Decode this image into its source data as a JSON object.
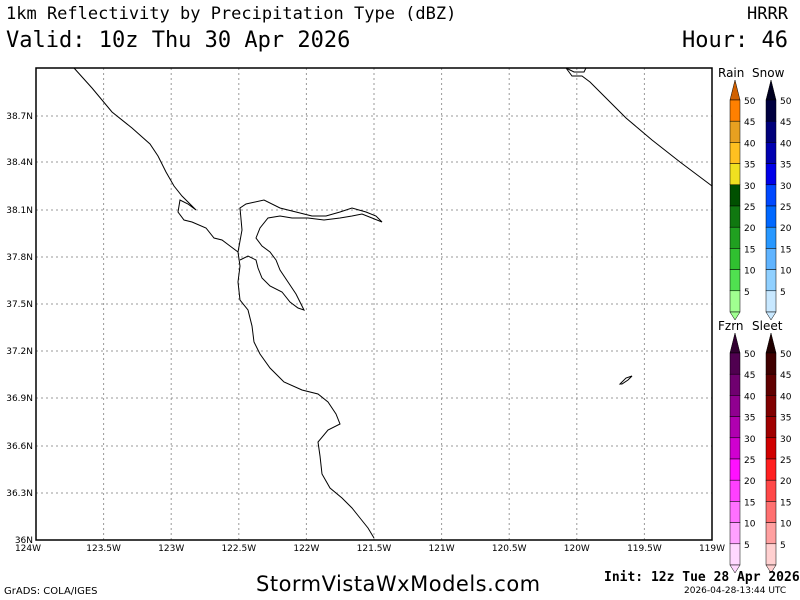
{
  "header": {
    "title": "1km Reflectivity by Precipitation Type (dBZ)",
    "valid": "Valid: 10z Thu 30 Apr 2026",
    "model": "HRRR",
    "hour": "Hour: 46"
  },
  "map": {
    "lon_labels": [
      "124W",
      "123.5W",
      "123W",
      "122.5W",
      "122W",
      "121.5W",
      "121W",
      "120.5W",
      "120W",
      "119.5W",
      "119W"
    ],
    "lat_labels": [
      "38.7N",
      "38.4N",
      "38.1N",
      "37.8N",
      "37.5N",
      "37.2N",
      "36.9N",
      "36.6N",
      "36.3N",
      "36N"
    ]
  },
  "legend": {
    "top_titles": [
      "Rain",
      "Snow"
    ],
    "bottom_titles": [
      "Fzrn",
      "Sleet"
    ],
    "levels": [
      "50",
      "45",
      "40",
      "35",
      "30",
      "25",
      "20",
      "15",
      "10",
      "5"
    ],
    "rain_colors": [
      "#ff8000",
      "#e8a020",
      "#ffc020",
      "#f0e020",
      "#005000",
      "#107810",
      "#20a020",
      "#30c030",
      "#50e050",
      "#a0ff90"
    ],
    "snow_colors": [
      "#000040",
      "#00007a",
      "#0000b0",
      "#0000e8",
      "#0048ff",
      "#0068ff",
      "#2898ff",
      "#60b4ff",
      "#90d0ff",
      "#c8e8ff"
    ],
    "fzrn_colors": [
      "#500050",
      "#700070",
      "#900090",
      "#b000b0",
      "#d000d0",
      "#ff10ff",
      "#ff40ff",
      "#ff70ff",
      "#ffa0ff",
      "#ffd8ff"
    ],
    "sleet_colors": [
      "#400000",
      "#600000",
      "#800000",
      "#a00000",
      "#d00000",
      "#ff2020",
      "#ff4848",
      "#ff7070",
      "#ffa0a0",
      "#ffd0d0"
    ]
  },
  "footer": {
    "grads": "GrADS: COLA/IGES",
    "site": "StormVistaWxModels.com",
    "init": "Init: 12z Tue 28 Apr 2026",
    "stamp": "2026-04-28-13:44 UTC"
  }
}
